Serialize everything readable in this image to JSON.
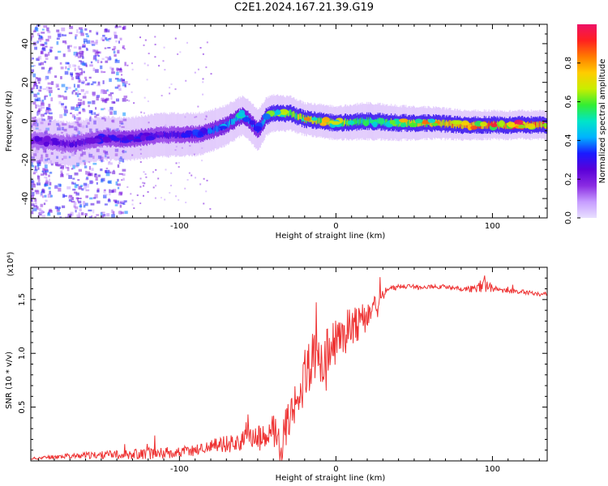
{
  "title": "C2E1.2024.167.21.39.G19",
  "colors": {
    "line": "#ee3333",
    "axis": "#000000",
    "colormap": [
      "#e8e0ff",
      "#c69cff",
      "#8a2be2",
      "#5a00d8",
      "#1a1aff",
      "#00b4ff",
      "#00e5c8",
      "#33ee33",
      "#c8ee00",
      "#ffcc00",
      "#ff7a00",
      "#ff2020",
      "#ee1166"
    ]
  },
  "chart_data": [
    {
      "type": "heatmap",
      "xlabel": "Height of straight line (km)",
      "ylabel": "Frequency (Hz)",
      "xlim": [
        -195,
        135
      ],
      "ylim": [
        -50,
        50
      ],
      "xticks": [
        -100,
        0,
        100
      ],
      "yticks": [
        -40,
        -20,
        0,
        20,
        40
      ],
      "grid": false,
      "colorbar": {
        "label": "Normalized spectral amplitude",
        "range": [
          0,
          1
        ],
        "ticks": [
          "0.0",
          "0.2",
          "0.4",
          "0.6",
          "0.8"
        ]
      },
      "ridge": {
        "x": [
          -190,
          -170,
          -150,
          -130,
          -110,
          -90,
          -80,
          -70,
          -60,
          -55,
          -50,
          -45,
          -40,
          -30,
          -20,
          -10,
          0,
          20,
          40,
          60,
          80,
          100,
          120,
          135
        ],
        "freq": [
          -10,
          -12,
          -9,
          -9,
          -7,
          -7,
          -5,
          -2,
          3,
          0,
          -5,
          2,
          4,
          4,
          1,
          0,
          -1,
          0,
          -1,
          -1,
          -2,
          -2,
          -2,
          -2
        ],
        "amplitude": [
          0.25,
          0.28,
          0.3,
          0.35,
          0.3,
          0.35,
          0.4,
          0.45,
          0.5,
          0.45,
          0.4,
          0.55,
          0.6,
          0.7,
          0.8,
          0.75,
          0.75,
          0.6,
          0.7,
          0.8,
          0.9,
          0.95,
          0.95,
          0.95
        ]
      }
    },
    {
      "type": "line",
      "xlabel": "Height of straight line (km)",
      "ylabel": "SNR (10 * v/v)",
      "multiplier": "(x10⁴)",
      "xlim": [
        -195,
        135
      ],
      "ylim": [
        0,
        1.8
      ],
      "xticks": [
        -100,
        0,
        100
      ],
      "yticks": [
        "0.5",
        "1.0",
        "1.5"
      ],
      "grid": false,
      "series": [
        {
          "x": [
            -195,
            -180,
            -160,
            -140,
            -120,
            -100,
            -90,
            -80,
            -70,
            -60,
            -50,
            -45,
            -40,
            -35,
            -30,
            -25,
            -20,
            -15,
            -10,
            -5,
            0,
            5,
            10,
            15,
            20,
            25,
            30,
            35,
            40,
            50,
            60,
            70,
            80,
            90,
            95,
            100,
            110,
            120,
            130,
            135
          ],
          "values": [
            0.02,
            0.04,
            0.05,
            0.06,
            0.07,
            0.08,
            0.1,
            0.13,
            0.16,
            0.18,
            0.22,
            0.18,
            0.3,
            0.15,
            0.4,
            0.55,
            0.8,
            0.95,
            0.9,
            1.0,
            1.1,
            1.15,
            1.3,
            1.25,
            1.35,
            1.45,
            1.55,
            1.6,
            1.62,
            1.62,
            1.62,
            1.62,
            1.6,
            1.6,
            1.65,
            1.6,
            1.58,
            1.57,
            1.55,
            1.55
          ],
          "noise": [
            0.01,
            0.02,
            0.03,
            0.04,
            0.06,
            0.05,
            0.06,
            0.07,
            0.08,
            0.1,
            0.12,
            0.14,
            0.16,
            0.2,
            0.2,
            0.22,
            0.25,
            0.25,
            0.25,
            0.25,
            0.22,
            0.2,
            0.2,
            0.18,
            0.15,
            0.1,
            0.05,
            0.03,
            0.02,
            0.02,
            0.02,
            0.02,
            0.02,
            0.04,
            0.08,
            0.03,
            0.02,
            0.02,
            0.02,
            0.02
          ]
        }
      ]
    }
  ]
}
